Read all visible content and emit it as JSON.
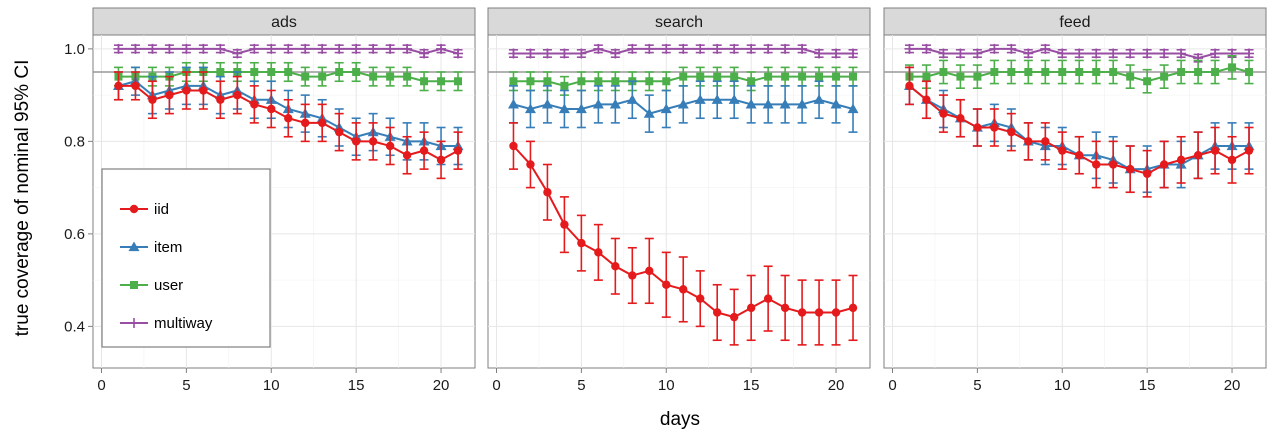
{
  "chart_data": {
    "type": "line",
    "ylabel": "true coverage of nominal 95% CI",
    "xlabel": "days",
    "xlim": [
      -0.5,
      22
    ],
    "ylim": [
      0.31,
      1.03
    ],
    "x_ticks": [
      0,
      5,
      10,
      15,
      20
    ],
    "y_ticks": [
      0.4,
      0.6,
      0.8,
      1.0
    ],
    "y_tick_labels": [
      "0.4",
      "0.6",
      "0.8",
      "1.0"
    ],
    "reference_line": 0.95,
    "grid": true,
    "legend_position": "left inside first panel",
    "days": [
      1,
      2,
      3,
      4,
      5,
      6,
      7,
      8,
      9,
      10,
      11,
      12,
      13,
      14,
      15,
      16,
      17,
      18,
      19,
      20,
      21
    ],
    "series_styles": [
      {
        "name": "iid",
        "color": "#e41a1c",
        "marker": "circle"
      },
      {
        "name": "item",
        "color": "#377eb8",
        "marker": "triangle"
      },
      {
        "name": "user",
        "color": "#4daf4a",
        "marker": "square"
      },
      {
        "name": "multiway",
        "color": "#984ea3",
        "marker": "plus"
      }
    ],
    "panels": [
      {
        "title": "ads",
        "series": [
          {
            "name": "iid",
            "values": [
              0.92,
              0.92,
              0.89,
              0.9,
              0.91,
              0.91,
              0.89,
              0.9,
              0.88,
              0.87,
              0.85,
              0.84,
              0.84,
              0.82,
              0.8,
              0.8,
              0.79,
              0.77,
              0.78,
              0.76,
              0.78
            ],
            "err": [
              0.03,
              0.03,
              0.04,
              0.04,
              0.04,
              0.04,
              0.04,
              0.04,
              0.04,
              0.04,
              0.04,
              0.04,
              0.04,
              0.04,
              0.04,
              0.04,
              0.04,
              0.04,
              0.04,
              0.04,
              0.04
            ]
          },
          {
            "name": "item",
            "values": [
              0.92,
              0.93,
              0.9,
              0.91,
              0.92,
              0.92,
              0.9,
              0.91,
              0.89,
              0.89,
              0.87,
              0.86,
              0.85,
              0.83,
              0.81,
              0.82,
              0.81,
              0.8,
              0.8,
              0.79,
              0.79
            ],
            "err": [
              0.03,
              0.03,
              0.04,
              0.04,
              0.04,
              0.04,
              0.04,
              0.04,
              0.04,
              0.04,
              0.04,
              0.04,
              0.04,
              0.04,
              0.04,
              0.04,
              0.04,
              0.04,
              0.04,
              0.04,
              0.04
            ]
          },
          {
            "name": "user",
            "values": [
              0.94,
              0.94,
              0.94,
              0.94,
              0.95,
              0.95,
              0.95,
              0.95,
              0.95,
              0.95,
              0.95,
              0.94,
              0.94,
              0.95,
              0.95,
              0.94,
              0.94,
              0.94,
              0.93,
              0.93,
              0.93
            ],
            "err": [
              0.02,
              0.02,
              0.02,
              0.02,
              0.02,
              0.02,
              0.02,
              0.02,
              0.02,
              0.02,
              0.02,
              0.02,
              0.02,
              0.02,
              0.02,
              0.02,
              0.02,
              0.02,
              0.02,
              0.02,
              0.02
            ]
          },
          {
            "name": "multiway",
            "values": [
              1.0,
              1.0,
              1.0,
              1.0,
              1.0,
              1.0,
              1.0,
              0.99,
              1.0,
              1.0,
              1.0,
              1.0,
              1.0,
              1.0,
              1.0,
              1.0,
              1.0,
              1.0,
              0.99,
              1.0,
              0.99
            ],
            "err": [
              0.008,
              0.008,
              0.008,
              0.008,
              0.008,
              0.008,
              0.008,
              0.008,
              0.008,
              0.008,
              0.008,
              0.008,
              0.008,
              0.008,
              0.008,
              0.008,
              0.008,
              0.008,
              0.008,
              0.008,
              0.008
            ]
          }
        ]
      },
      {
        "title": "search",
        "series": [
          {
            "name": "iid",
            "values": [
              0.79,
              0.75,
              0.69,
              0.62,
              0.58,
              0.56,
              0.53,
              0.51,
              0.52,
              0.49,
              0.48,
              0.46,
              0.43,
              0.42,
              0.44,
              0.46,
              0.44,
              0.43,
              0.43,
              0.43,
              0.44
            ],
            "err": [
              0.05,
              0.05,
              0.06,
              0.06,
              0.06,
              0.06,
              0.06,
              0.06,
              0.07,
              0.07,
              0.07,
              0.06,
              0.06,
              0.06,
              0.07,
              0.07,
              0.07,
              0.07,
              0.07,
              0.07,
              0.07
            ]
          },
          {
            "name": "item",
            "values": [
              0.88,
              0.87,
              0.88,
              0.87,
              0.87,
              0.88,
              0.88,
              0.89,
              0.86,
              0.87,
              0.88,
              0.89,
              0.89,
              0.89,
              0.88,
              0.88,
              0.88,
              0.88,
              0.89,
              0.88,
              0.87
            ],
            "err": [
              0.04,
              0.04,
              0.04,
              0.04,
              0.04,
              0.04,
              0.04,
              0.04,
              0.04,
              0.04,
              0.04,
              0.04,
              0.04,
              0.04,
              0.04,
              0.04,
              0.04,
              0.04,
              0.04,
              0.04,
              0.05
            ]
          },
          {
            "name": "user",
            "values": [
              0.93,
              0.93,
              0.93,
              0.92,
              0.93,
              0.93,
              0.93,
              0.93,
              0.93,
              0.93,
              0.94,
              0.94,
              0.94,
              0.94,
              0.93,
              0.94,
              0.94,
              0.94,
              0.94,
              0.94,
              0.94
            ],
            "err": [
              0.02,
              0.02,
              0.02,
              0.02,
              0.02,
              0.02,
              0.02,
              0.02,
              0.02,
              0.02,
              0.02,
              0.02,
              0.02,
              0.02,
              0.02,
              0.02,
              0.02,
              0.02,
              0.02,
              0.02,
              0.02
            ]
          },
          {
            "name": "multiway",
            "values": [
              0.99,
              0.99,
              0.99,
              0.99,
              0.99,
              1.0,
              0.99,
              1.0,
              1.0,
              1.0,
              1.0,
              1.0,
              1.0,
              1.0,
              1.0,
              1.0,
              1.0,
              1.0,
              0.99,
              0.99,
              0.99
            ],
            "err": [
              0.008,
              0.008,
              0.008,
              0.008,
              0.008,
              0.008,
              0.008,
              0.008,
              0.008,
              0.008,
              0.008,
              0.008,
              0.008,
              0.008,
              0.008,
              0.008,
              0.008,
              0.008,
              0.008,
              0.008,
              0.008
            ]
          }
        ]
      },
      {
        "title": "feed",
        "series": [
          {
            "name": "iid",
            "values": [
              0.92,
              0.89,
              0.86,
              0.85,
              0.83,
              0.83,
              0.82,
              0.8,
              0.8,
              0.78,
              0.77,
              0.75,
              0.75,
              0.74,
              0.73,
              0.75,
              0.76,
              0.77,
              0.78,
              0.76,
              0.78
            ],
            "err": [
              0.04,
              0.04,
              0.04,
              0.04,
              0.04,
              0.04,
              0.04,
              0.04,
              0.04,
              0.04,
              0.04,
              0.05,
              0.05,
              0.05,
              0.05,
              0.05,
              0.05,
              0.05,
              0.05,
              0.05,
              0.05
            ]
          },
          {
            "name": "item",
            "values": [
              0.92,
              0.89,
              0.87,
              0.85,
              0.83,
              0.84,
              0.83,
              0.8,
              0.79,
              0.79,
              0.77,
              0.77,
              0.76,
              0.74,
              0.74,
              0.75,
              0.75,
              0.77,
              0.79,
              0.79,
              0.79
            ],
            "err": [
              0.04,
              0.04,
              0.04,
              0.04,
              0.04,
              0.04,
              0.04,
              0.04,
              0.04,
              0.04,
              0.04,
              0.05,
              0.05,
              0.05,
              0.05,
              0.05,
              0.05,
              0.05,
              0.05,
              0.05,
              0.05
            ]
          },
          {
            "name": "user",
            "values": [
              0.94,
              0.94,
              0.95,
              0.94,
              0.94,
              0.95,
              0.95,
              0.95,
              0.95,
              0.95,
              0.95,
              0.95,
              0.95,
              0.94,
              0.93,
              0.94,
              0.95,
              0.95,
              0.95,
              0.96,
              0.95
            ],
            "err": [
              0.025,
              0.025,
              0.025,
              0.025,
              0.025,
              0.025,
              0.025,
              0.025,
              0.025,
              0.025,
              0.025,
              0.025,
              0.025,
              0.025,
              0.025,
              0.025,
              0.025,
              0.025,
              0.025,
              0.025,
              0.025
            ]
          },
          {
            "name": "multiway",
            "values": [
              1.0,
              1.0,
              0.99,
              0.99,
              0.99,
              1.0,
              1.0,
              0.99,
              1.0,
              0.99,
              0.99,
              0.99,
              0.99,
              0.99,
              0.99,
              0.99,
              0.99,
              0.98,
              0.99,
              0.99,
              0.99
            ],
            "err": [
              0.008,
              0.008,
              0.008,
              0.008,
              0.008,
              0.008,
              0.008,
              0.008,
              0.008,
              0.008,
              0.008,
              0.008,
              0.008,
              0.008,
              0.008,
              0.008,
              0.008,
              0.008,
              0.008,
              0.008,
              0.008
            ]
          }
        ]
      }
    ]
  }
}
